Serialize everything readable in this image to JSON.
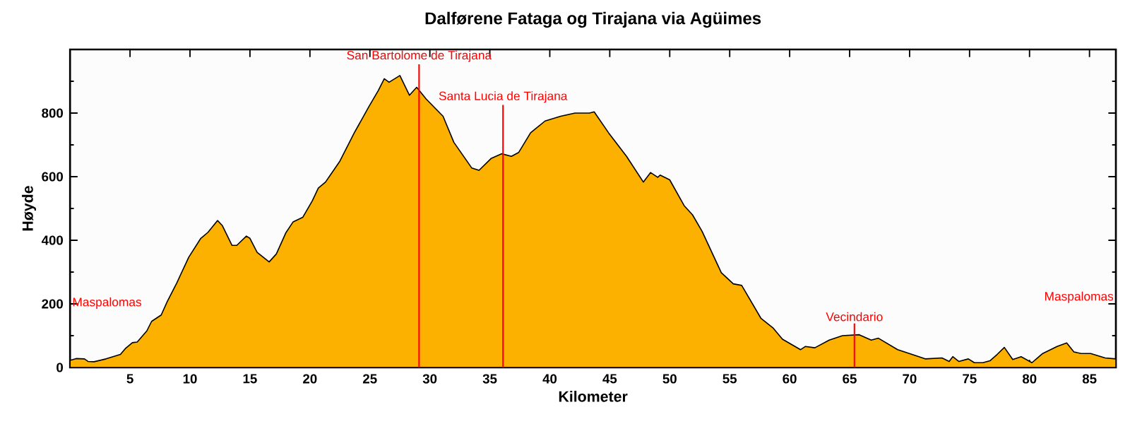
{
  "chart_data": {
    "type": "area",
    "title": "Dalførene Fataga og Tirajana via Agüimes",
    "xlabel": "Kilometer",
    "ylabel": "Høyde",
    "color": "#fcb000",
    "x": [
      0,
      0.5,
      1.2,
      1.5,
      2.0,
      3.0,
      4.2,
      4.6,
      5.2,
      5.6,
      6.4,
      6.8,
      7.6,
      8.1,
      8.9,
      9.9,
      10.9,
      11.5,
      12.3,
      12.7,
      13.5,
      13.9,
      14.7,
      15.0,
      15.6,
      16.6,
      17.2,
      18.0,
      18.6,
      19.4,
      20.2,
      20.7,
      21.3,
      22.5,
      23.7,
      24.9,
      25.7,
      26.2,
      26.6,
      27.5,
      28.3,
      28.9,
      29.7,
      31.1,
      32.0,
      33.5,
      34.1,
      35.1,
      36.0,
      36.8,
      37.4,
      38.4,
      39.6,
      40.9,
      42.1,
      43.3,
      43.7,
      44.9,
      46.4,
      47.8,
      48.4,
      49.0,
      49.2,
      50.0,
      51.2,
      51.9,
      52.7,
      54.3,
      55.3,
      56.0,
      57.6,
      58.6,
      59.4,
      60.9,
      61.3,
      62.1,
      63.3,
      64.4,
      65.8,
      66.8,
      67.4,
      69.0,
      70.2,
      71.3,
      72.7,
      73.3,
      73.6,
      74.1,
      74.9,
      75.4,
      76.1,
      76.7,
      77.3,
      77.9,
      78.6,
      79.3,
      80.2,
      81.1,
      82.3,
      83.1,
      83.7,
      84.3,
      85.1,
      86.3,
      87.2
    ],
    "values": [
      22,
      28,
      27,
      19,
      18,
      27,
      41,
      59,
      78,
      80,
      115,
      145,
      165,
      207,
      266,
      347,
      406,
      425,
      462,
      446,
      384,
      384,
      413,
      406,
      362,
      332,
      357,
      424,
      458,
      472,
      524,
      564,
      583,
      649,
      738,
      819,
      871,
      908,
      897,
      918,
      856,
      881,
      844,
      790,
      708,
      627,
      620,
      657,
      672,
      664,
      676,
      738,
      775,
      790,
      800,
      800,
      804,
      738,
      664,
      583,
      613,
      598,
      605,
      590,
      509,
      480,
      428,
      298,
      263,
      258,
      155,
      125,
      89,
      56,
      66,
      62,
      86,
      100,
      103,
      86,
      92,
      56,
      41,
      27,
      30,
      19,
      34,
      19,
      27,
      15,
      15,
      21,
      41,
      63,
      25,
      34,
      15,
      44,
      66,
      77,
      49,
      44,
      44,
      30,
      27
    ],
    "xlim": [
      0,
      87.2
    ],
    "ylim": [
      0,
      1000
    ],
    "xticks": [
      5,
      10,
      15,
      20,
      25,
      30,
      35,
      40,
      45,
      50,
      55,
      60,
      65,
      70,
      75,
      80,
      85
    ],
    "yticks": [
      0,
      200,
      400,
      600,
      800,
      {
        "value": 1000,
        "label": null
      }
    ],
    "annotations": [
      "Maspalomas",
      "Maspalomas"
    ],
    "ref_lines": [
      {
        "axis": "x",
        "value": 29.1,
        "label": "San Bartolome de Tirajana",
        "color": "#ff0000"
      },
      {
        "axis": "x",
        "value": 36.1,
        "label": "Santa Lucia de Tirajana",
        "color": "#ff0000"
      },
      {
        "axis": "x",
        "value": 65.4,
        "label": "Vecindario",
        "color": "#ff0000"
      }
    ]
  }
}
